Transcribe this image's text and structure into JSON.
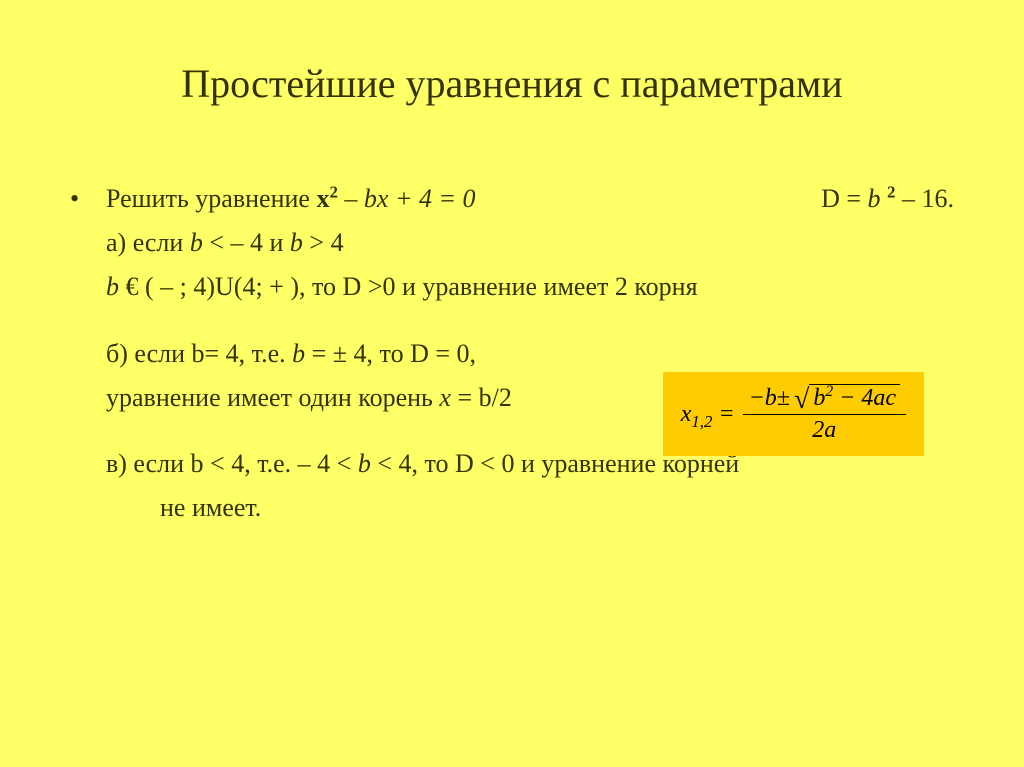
{
  "title": "Простейшие уравнения с параметрами",
  "line1_left_pre": "Решить уравнение ",
  "line1_eq_x": "х",
  "line1_eq_sup": "2",
  "line1_eq_rest": " – bх + 4 = 0",
  "line1_right_pre": "D = ",
  "line1_right_b": "b ",
  "line1_right_sup": "2",
  "line1_right_post": " – 16.",
  "case_a_pre": "а) если ",
  "case_a_b1": "b",
  "case_a_mid": " < – 4 и ",
  "case_a_b2": "b",
  "case_a_post": " > 4",
  "case_a_l2_pre": "b",
  "case_a_l2_rest": " € ( – ; 4)U(4; + ), то D >0 и уравнение имеет 2 корня",
  "case_b_pre": "б) если  b= 4, т.е. ",
  "case_b_it": "b ",
  "case_b_post": "= ± 4, то D = 0,",
  "case_b_l2_pre": "уравнение имеет один корень ",
  "case_b_l2_it": "х ",
  "case_b_l2_post": "= b/2",
  "case_c_pre": "в) если  b < 4, т.е. – 4 < ",
  "case_c_it": "b ",
  "case_c_post": "< 4, то D < 0 и уравнение корней",
  "case_c_l2": "не имеет.",
  "formula": {
    "lhs_x": "x",
    "lhs_sub": "1,2",
    "eq": " = ",
    "num_pre": "−",
    "num_b": "b",
    "num_pm": " ± ",
    "sqrt_b": "b",
    "sqrt_sup": "2",
    "sqrt_rest": " − 4ac",
    "den": "2a"
  },
  "colors": {
    "background": "#ffff66",
    "text": "#333300",
    "formula_bg": "#ffcc00",
    "formula_text": "#000000"
  }
}
